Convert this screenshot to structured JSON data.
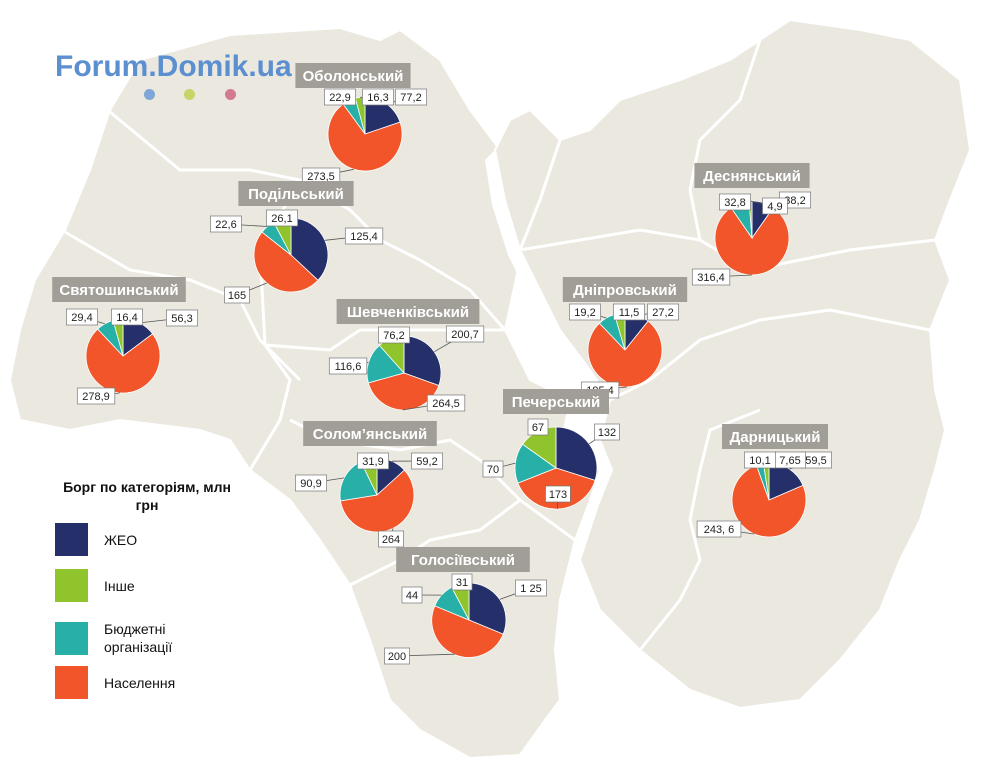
{
  "watermark": {
    "text": "Forum.Domik.ua",
    "dot_colors": [
      "#7fa6d8",
      "#c8d468",
      "#d47a8e"
    ]
  },
  "colors": {
    "zheo": "#25306b",
    "inshe": "#8fc42d",
    "budget": "#27b0a7",
    "population": "#f2552a",
    "land": "#eae8df",
    "border": "#ffffff",
    "label_bg": "#a19e98"
  },
  "legend": {
    "title": "Борг по категоріям, млн грн",
    "items": [
      {
        "key": "zheo",
        "label": "ЖЕО"
      },
      {
        "key": "inshe",
        "label": "Інше"
      },
      {
        "key": "budget",
        "label": "Бюджетні організації"
      },
      {
        "key": "population",
        "label": "Населення"
      }
    ]
  },
  "districts": [
    {
      "id": "obolonskyi",
      "name": "Оболонський",
      "values": {
        "zheo": 77.2,
        "inshe": 16.3,
        "budget": 22.9,
        "population": 273.5
      },
      "labels": {
        "zheo": "77,2",
        "inshe": "16,3",
        "budget": "22,9",
        "population": "273,5"
      }
    },
    {
      "id": "podilskyi",
      "name": "Подільський",
      "values": {
        "zheo": 125.4,
        "inshe": 26.1,
        "budget": 22.6,
        "population": 165
      },
      "labels": {
        "zheo": "125,4",
        "inshe": "26,1",
        "budget": "22,6",
        "population": "165"
      }
    },
    {
      "id": "sviatoshynskyi",
      "name": "Святошинський",
      "values": {
        "zheo": 56.3,
        "inshe": 16.4,
        "budget": 29.4,
        "population": 278.9
      },
      "labels": {
        "zheo": "56,3",
        "inshe": "16,4",
        "budget": "29,4",
        "population": "278,9"
      }
    },
    {
      "id": "shevchenkivskyi",
      "name": "Шевченківський",
      "values": {
        "zheo": 200.7,
        "inshe": 76.2,
        "budget": 116.6,
        "population": 264.5
      },
      "labels": {
        "zheo": "200,7",
        "inshe": "76,2",
        "budget": "116,6",
        "population": "264,5"
      }
    },
    {
      "id": "solomianskyi",
      "name": "Солом’янський",
      "values": {
        "zheo": 59.2,
        "inshe": 31.9,
        "budget": 90.9,
        "population": 264
      },
      "labels": {
        "zheo": "59,2",
        "inshe": "31,9",
        "budget": "90,9",
        "population": "264"
      }
    },
    {
      "id": "holosiivskyi",
      "name": "Голосіївський",
      "values": {
        "zheo": 125,
        "inshe": 31,
        "budget": 44,
        "population": 200
      },
      "labels": {
        "zheo": "1 25",
        "inshe": "31",
        "budget": "44",
        "population": "200"
      }
    },
    {
      "id": "pecherskyi",
      "name": "Печерський",
      "values": {
        "zheo": 132,
        "inshe": 67,
        "budget": 70,
        "population": 173
      },
      "labels": {
        "zheo": "132",
        "inshe": "67",
        "budget": "70",
        "population": "173"
      }
    },
    {
      "id": "desnianskyi",
      "name": "Деснянський",
      "values": {
        "zheo": 38.2,
        "inshe": 4.9,
        "budget": 32.8,
        "population": 316.4
      },
      "labels": {
        "zheo": "38,2",
        "inshe": "4,9",
        "budget": "32,8",
        "population": "316,4"
      }
    },
    {
      "id": "dniprovskyi",
      "name": "Дніпровський",
      "values": {
        "zheo": 27.2,
        "inshe": 11.5,
        "budget": 19.2,
        "population": 195.4
      },
      "labels": {
        "zheo": "27,2",
        "inshe": "11,5",
        "budget": "19,2",
        "population": "195,4"
      }
    },
    {
      "id": "darnytskyi",
      "name": "Дарницький",
      "values": {
        "zheo": 59.5,
        "inshe": 7.65,
        "budget": 10.1,
        "population": 243.6
      },
      "labels": {
        "zheo": "59,5",
        "inshe": "7,65",
        "budget": "10,1",
        "population": "243, 6"
      }
    }
  ]
}
